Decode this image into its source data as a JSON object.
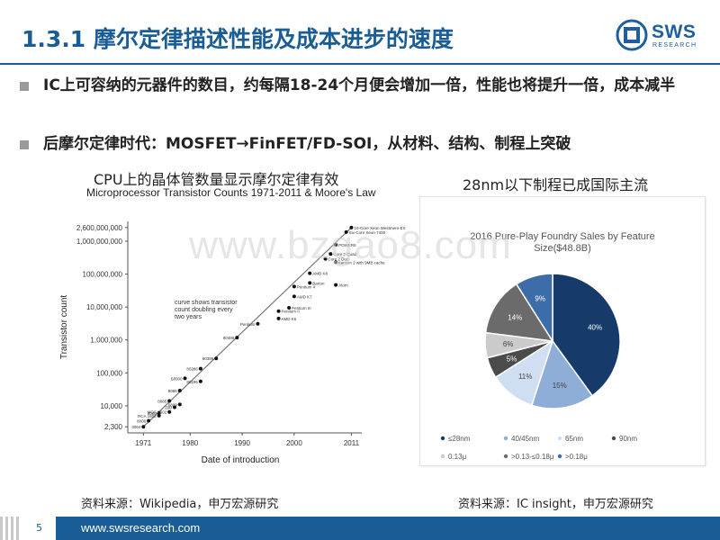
{
  "slide": {
    "title": "1.3.1 摩尔定律描述性能及成本进步的速度",
    "logo_text": "SWS",
    "logo_sub": "RESEARCH",
    "bullets": [
      "IC上可容纳的元器件的数目，约每隔18-24个月便会增加一倍，性能也将提升一倍，成本减半",
      "后摩尔定律时代：MOSFET→FinFET/FD-SOI，从材料、结构、制程上突破"
    ],
    "caption_left": "CPU上的晶体管数量显示摩尔定律有效",
    "caption_right": "28nm以下制程已成国际主流",
    "source_left": "资料来源：Wikipedia，申万宏源研究",
    "source_right": "资料来源：IC insight，申万宏源研究",
    "watermark": "www.bzgao8.com",
    "page_number": "5",
    "footer_url": "www.swsresearch.com"
  },
  "chart_data": [
    {
      "type": "scatter",
      "title": "Microprocessor Transistor Counts 1971-2011 & Moore's Law",
      "xlabel": "Date of introduction",
      "ylabel": "Transistor count",
      "y_scale": "log",
      "xlim": [
        1968,
        2013
      ],
      "ylim": [
        1500,
        4000000000
      ],
      "x_ticks": [
        "1971",
        "1980",
        "1990",
        "2000",
        "2011"
      ],
      "y_ticks": [
        "2,300",
        "10,000",
        "100,000",
        "1,000,000",
        "10,000,000",
        "100,000,000",
        "1,000,000,000",
        "2,600,000,000"
      ],
      "y_tick_values": [
        2300,
        10000,
        100000,
        1000000,
        10000000,
        100000000,
        1000000000,
        2600000000
      ],
      "annotation": "curve shows transistor count doubling every two years",
      "trend_line": [
        [
          1971,
          2300
        ],
        [
          2011,
          2600000000
        ]
      ],
      "points": [
        {
          "x": 1971,
          "y": 2300,
          "label": "4004"
        },
        {
          "x": 1972,
          "y": 3500,
          "label": "8008"
        },
        {
          "x": 1974,
          "y": 5000,
          "label": "RCA 1802"
        },
        {
          "x": 1974,
          "y": 6000,
          "label": "8080"
        },
        {
          "x": 1976,
          "y": 6500,
          "label": "MOS 6502"
        },
        {
          "x": 1977,
          "y": 9000,
          "label": "Z80"
        },
        {
          "x": 1978,
          "y": 11000,
          "label": "6809"
        },
        {
          "x": 1976,
          "y": 14000,
          "label": "8085"
        },
        {
          "x": 1978,
          "y": 29000,
          "label": "8086"
        },
        {
          "x": 1979,
          "y": 68000,
          "label": "68000"
        },
        {
          "x": 1982,
          "y": 55000,
          "label": "80186"
        },
        {
          "x": 1982,
          "y": 134000,
          "label": "80286"
        },
        {
          "x": 1985,
          "y": 275000,
          "label": "80386"
        },
        {
          "x": 1989,
          "y": 1180000,
          "label": "80486"
        },
        {
          "x": 1993,
          "y": 3100000,
          "label": "Pentium"
        },
        {
          "x": 1997,
          "y": 4500000,
          "label": "AMD K6"
        },
        {
          "x": 1999,
          "y": 9500000,
          "label": "Pentium III"
        },
        {
          "x": 2000,
          "y": 21000000,
          "label": "AMD K7"
        },
        {
          "x": 1997,
          "y": 7500000,
          "label": "Pentium II"
        },
        {
          "x": 2000,
          "y": 42000000,
          "label": "Pentium 4"
        },
        {
          "x": 2003,
          "y": 54000000,
          "label": "Barton"
        },
        {
          "x": 2008,
          "y": 47000000,
          "label": "Atom"
        },
        {
          "x": 2003,
          "y": 105900000,
          "label": "AMD K8"
        },
        {
          "x": 2006,
          "y": 291000000,
          "label": "Core 2 Duo"
        },
        {
          "x": 2008,
          "y": 230000000,
          "label": "Itanium 2 with 9MB cache"
        },
        {
          "x": 2007,
          "y": 410000000,
          "label": "Core 2 Quad"
        },
        {
          "x": 2008,
          "y": 781000000,
          "label": "POWER6"
        },
        {
          "x": 2010,
          "y": 1900000000,
          "label": "Six-Core Xeon 7400"
        },
        {
          "x": 2011,
          "y": 2600000000,
          "label": "10-Core Xeon Westmere-EX"
        }
      ]
    },
    {
      "type": "pie",
      "title": "2016 Pure-Play Foundry Sales by Feature Size($48.8B)",
      "legend_position": "bottom",
      "legend": [
        "≤28nm",
        "40/45nm",
        "65nm",
        "90nm",
        "0.13μ",
        ">0.13-≤0.18μ",
        ">0.18μ"
      ],
      "slices": [
        {
          "label": "≤28nm",
          "value": 40,
          "color": "#163b6b"
        },
        {
          "label": "40/45nm",
          "value": 15,
          "color": "#8eaed8"
        },
        {
          "label": "65nm",
          "value": 11,
          "color": "#cfdff1"
        },
        {
          "label": "90nm",
          "value": 5,
          "color": "#4b4b4b"
        },
        {
          "label": "0.13μ",
          "value": 6,
          "color": "#cbcbcb"
        },
        {
          "label": ">0.13-≤0.18μ",
          "value": 14,
          "color": "#6b6b6b"
        },
        {
          "label": ">0.18μ",
          "value": 9,
          "color": "#3d6da9"
        }
      ],
      "data_labels": [
        "40%",
        "15%",
        "11%",
        "5%",
        "6%",
        "14%",
        "9%"
      ]
    }
  ]
}
